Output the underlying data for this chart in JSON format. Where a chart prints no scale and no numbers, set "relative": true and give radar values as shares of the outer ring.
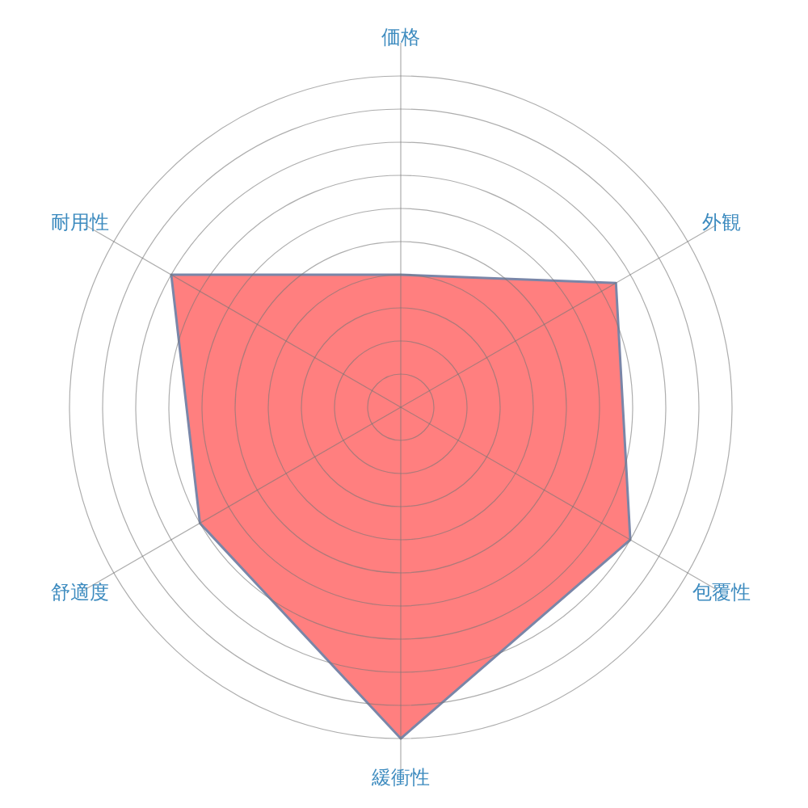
{
  "chart_data": {
    "type": "radar",
    "relative": true,
    "categories": [
      "価格",
      "外観",
      "包覆性",
      "緩衝性",
      "舒適度",
      "耐用性"
    ],
    "series": [
      {
        "color": "#ff7f7f",
        "values": [
          0.4,
          0.75,
          0.8,
          1.0,
          0.7,
          0.8
        ]
      }
    ],
    "grid": true
  }
}
